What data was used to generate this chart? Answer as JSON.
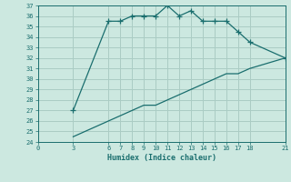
{
  "xlabel": "Humidex (Indice chaleur)",
  "bg_color": "#cce8e0",
  "grid_color": "#aaccc4",
  "line_color": "#1a6e6e",
  "upper_x": [
    3,
    6,
    7,
    8,
    9,
    10,
    11,
    12,
    13,
    14,
    15,
    16,
    17,
    18,
    21
  ],
  "upper_y": [
    27,
    35.5,
    35.5,
    36.0,
    36.0,
    36.0,
    37.0,
    36.0,
    36.5,
    35.5,
    35.5,
    35.5,
    34.5,
    33.5,
    32.0
  ],
  "lower_x": [
    3,
    6,
    7,
    8,
    9,
    10,
    11,
    12,
    13,
    14,
    15,
    16,
    17,
    18,
    21
  ],
  "lower_y": [
    24.5,
    26.0,
    26.5,
    27.0,
    27.5,
    27.5,
    28.0,
    28.5,
    29.0,
    29.5,
    30.0,
    30.5,
    30.5,
    31.0,
    32.0
  ],
  "xlim": [
    0,
    21
  ],
  "ylim": [
    24,
    37
  ],
  "xticks": [
    0,
    3,
    6,
    7,
    8,
    9,
    10,
    11,
    12,
    13,
    14,
    15,
    16,
    17,
    18,
    21
  ],
  "yticks": [
    24,
    25,
    26,
    27,
    28,
    29,
    30,
    31,
    32,
    33,
    34,
    35,
    36,
    37
  ]
}
